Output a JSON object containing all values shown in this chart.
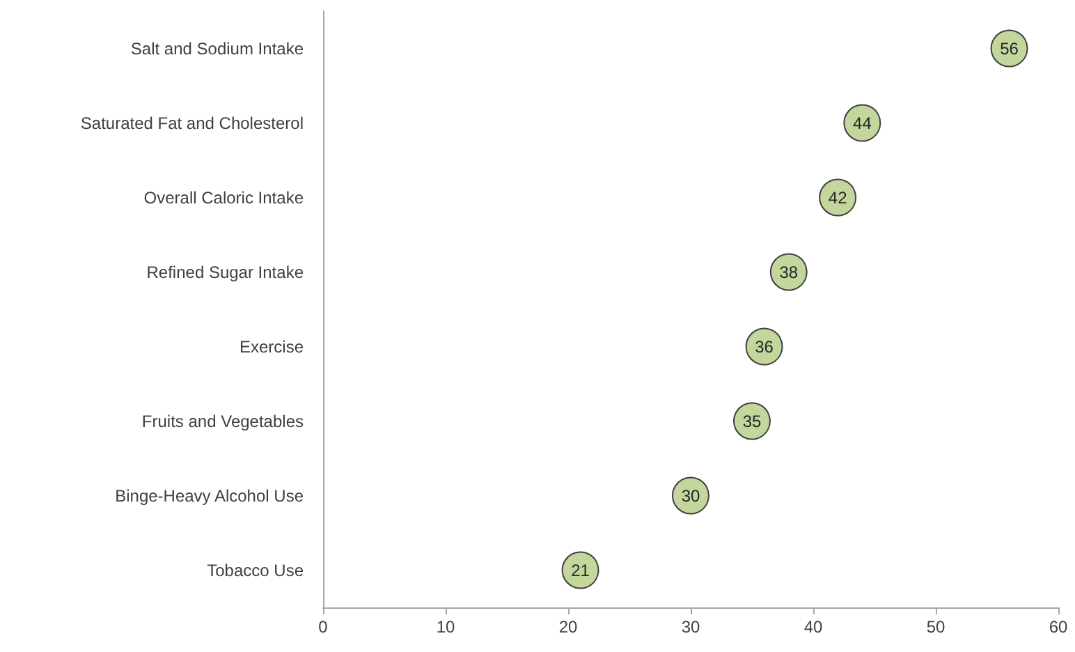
{
  "chart_data": {
    "type": "scatter",
    "orientation": "horizontal",
    "categories": [
      "Salt and Sodium Intake",
      "Saturated Fat and Cholesterol",
      "Overall Caloric Intake",
      "Refined Sugar Intake",
      "Exercise",
      "Fruits and Vegetables",
      "Binge-Heavy Alcohol Use",
      "Tobacco Use"
    ],
    "values": [
      56,
      44,
      42,
      38,
      36,
      35,
      30,
      21
    ],
    "color": "#c3d69b",
    "xlim": [
      0,
      60
    ],
    "xticks": [
      0,
      10,
      20,
      30,
      40,
      50,
      60
    ],
    "data_labels": true,
    "marker": "circle",
    "grid": false
  }
}
